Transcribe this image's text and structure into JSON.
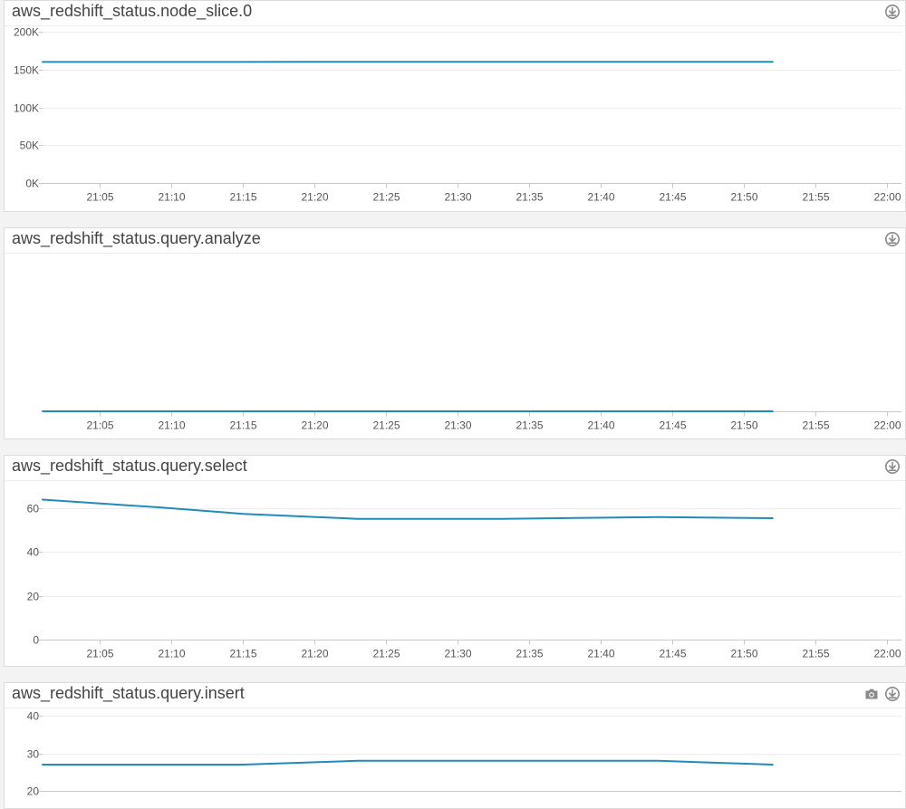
{
  "colors": {
    "series": "#1f8bbf",
    "grid": "#ececec",
    "axis": "#c8c8c8",
    "icon": "#8a8a8a"
  },
  "panels": [
    {
      "title": "aws_redshift_status.node_slice.0",
      "icons": [
        "download-icon"
      ],
      "chart_data": {
        "type": "line",
        "xlabel": "",
        "ylabel": "",
        "xlim": [
          "21:01",
          "22:01"
        ],
        "ylim": [
          0,
          200000
        ],
        "y_ticks": [
          0,
          50000,
          100000,
          150000,
          200000
        ],
        "y_tick_labels": [
          "0K",
          "50K",
          "100K",
          "150K",
          "200K"
        ],
        "x_ticks": [
          "21:05",
          "21:10",
          "21:15",
          "21:20",
          "21:25",
          "21:30",
          "21:35",
          "21:40",
          "21:45",
          "21:50",
          "21:55",
          "22:00"
        ],
        "grid": true,
        "series": [
          {
            "x": [
              "21:01",
              "21:10",
              "21:20",
              "21:30",
              "21:40",
              "21:52"
            ],
            "y": [
              160000,
              160000,
              160200,
              160200,
              160200,
              160200
            ]
          }
        ]
      }
    },
    {
      "title": "aws_redshift_status.query.analyze",
      "icons": [
        "download-icon"
      ],
      "chart_data": {
        "type": "line",
        "xlabel": "",
        "ylabel": "",
        "xlim": [
          "21:01",
          "22:01"
        ],
        "ylim": [
          0,
          1
        ],
        "y_ticks": [],
        "y_tick_labels": [],
        "x_ticks": [
          "21:05",
          "21:10",
          "21:15",
          "21:20",
          "21:25",
          "21:30",
          "21:35",
          "21:40",
          "21:45",
          "21:50",
          "21:55",
          "22:00"
        ],
        "grid": false,
        "series": [
          {
            "x": [
              "21:01",
              "21:52"
            ],
            "y": [
              0,
              0
            ]
          }
        ]
      }
    },
    {
      "title": "aws_redshift_status.query.select",
      "icons": [
        "download-icon"
      ],
      "chart_data": {
        "type": "line",
        "xlabel": "",
        "ylabel": "",
        "xlim": [
          "21:01",
          "22:01"
        ],
        "ylim": [
          0,
          70
        ],
        "y_ticks": [
          0,
          20,
          40,
          60
        ],
        "y_tick_labels": [
          "0",
          "20",
          "40",
          "60"
        ],
        "x_ticks": [
          "21:05",
          "21:10",
          "21:15",
          "21:20",
          "21:25",
          "21:30",
          "21:35",
          "21:40",
          "21:45",
          "21:50",
          "21:55",
          "22:00"
        ],
        "grid": true,
        "series": [
          {
            "x": [
              "21:01",
              "21:09",
              "21:15",
              "21:23",
              "21:33",
              "21:44",
              "21:52"
            ],
            "y": [
              64,
              60.5,
              57.5,
              55.2,
              55.2,
              56,
              55.5
            ]
          }
        ]
      }
    },
    {
      "title": "aws_redshift_status.query.insert",
      "icons": [
        "camera-icon",
        "download-icon"
      ],
      "chart_data": {
        "type": "line",
        "xlabel": "",
        "ylabel": "",
        "xlim": [
          "21:01",
          "22:01"
        ],
        "ylim": [
          20,
          40
        ],
        "y_ticks": [
          20,
          30,
          40
        ],
        "y_tick_labels": [
          "20",
          "30",
          "40"
        ],
        "x_ticks": [],
        "grid": true,
        "series": [
          {
            "x": [
              "21:01",
              "21:15",
              "21:23",
              "21:44",
              "21:52"
            ],
            "y": [
              27,
              27,
              28,
              28,
              27
            ]
          }
        ]
      }
    }
  ]
}
